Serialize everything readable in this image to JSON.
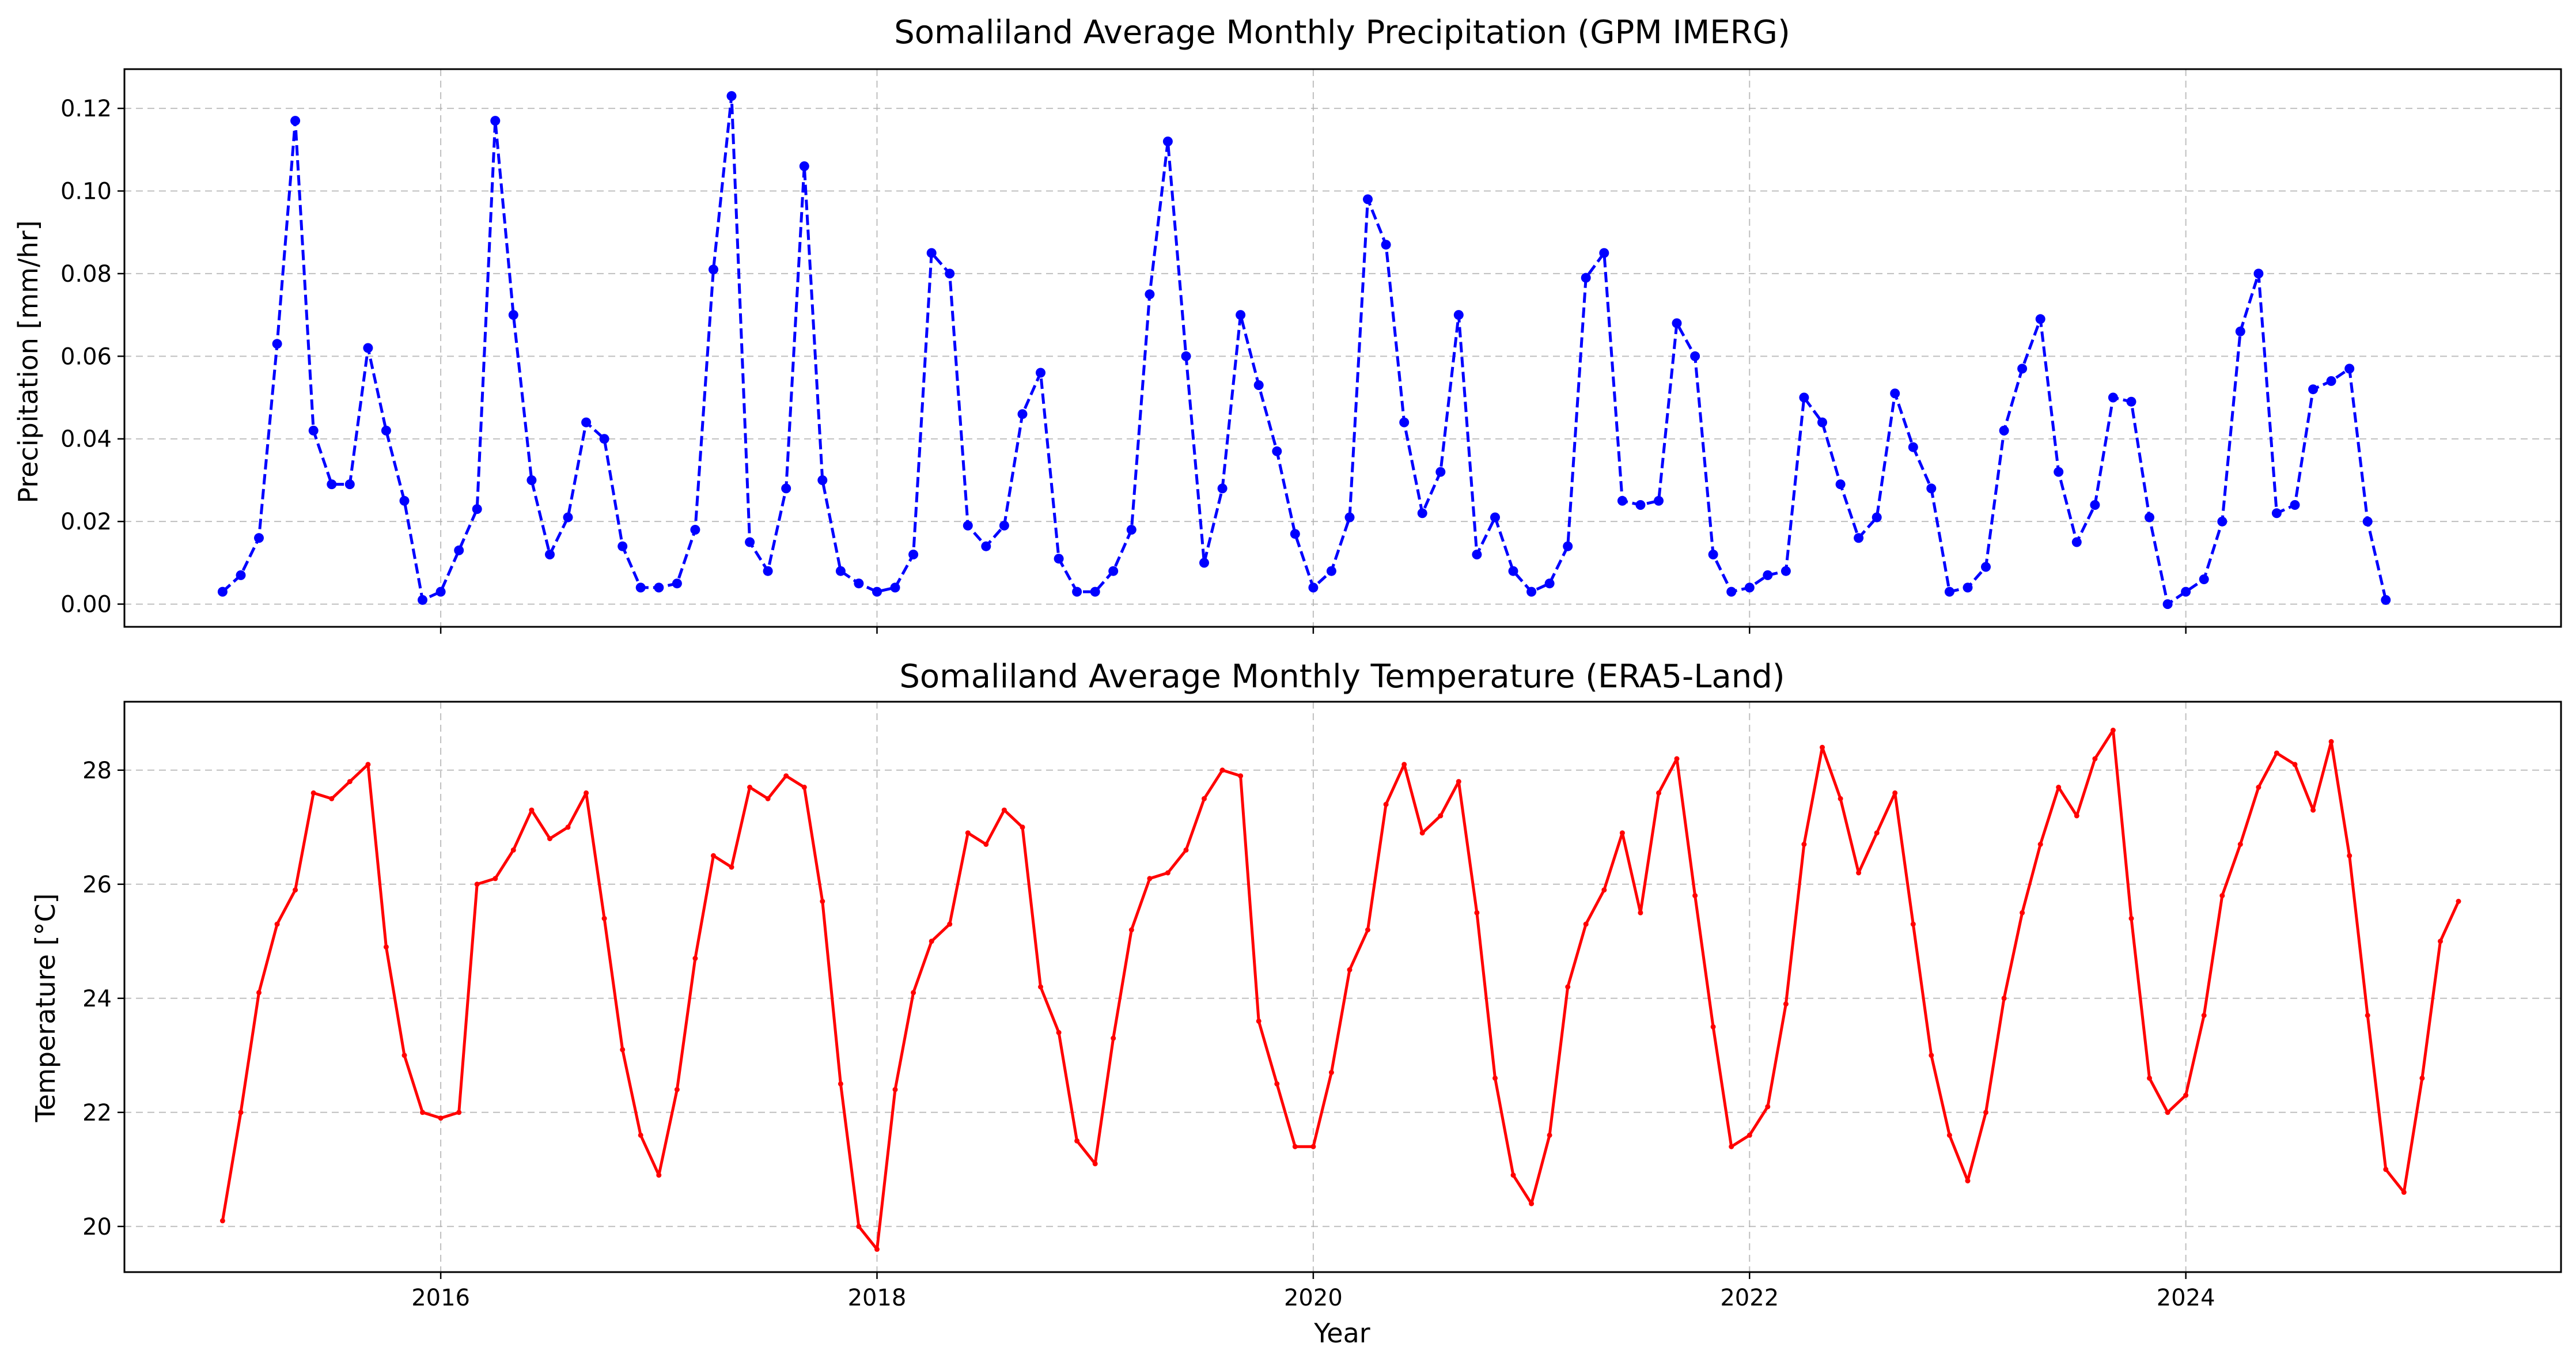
{
  "chart_data": [
    {
      "type": "line",
      "title": "Somaliland Average Monthly Precipitation (GPM IMERG)",
      "xlabel": "",
      "ylabel": "Precipitation [mm/hr]",
      "xlim": [
        2014.55,
        2025.72
      ],
      "ylim": [
        -0.0055,
        0.1295
      ],
      "grid": true,
      "x_start": "2015-01",
      "x_ticks": [
        2016,
        2018,
        2020,
        2022,
        2024
      ],
      "y_ticks": [
        0.0,
        0.02,
        0.04,
        0.06,
        0.08,
        0.1,
        0.12
      ],
      "y_tick_labels": [
        "0.00",
        "0.02",
        "0.04",
        "0.06",
        "0.08",
        "0.10",
        "0.12"
      ],
      "series": [
        {
          "color": "#0000ff",
          "line_style": "dashed",
          "marker": "circle",
          "values": [
            0.003,
            0.007,
            0.016,
            0.063,
            0.117,
            0.042,
            0.029,
            0.029,
            0.062,
            0.042,
            0.025,
            0.001,
            0.003,
            0.013,
            0.023,
            0.117,
            0.07,
            0.03,
            0.012,
            0.021,
            0.044,
            0.04,
            0.014,
            0.004,
            0.004,
            0.005,
            0.018,
            0.081,
            0.123,
            0.015,
            0.008,
            0.028,
            0.106,
            0.03,
            0.008,
            0.005,
            0.003,
            0.004,
            0.012,
            0.085,
            0.08,
            0.019,
            0.014,
            0.019,
            0.046,
            0.056,
            0.011,
            0.003,
            0.003,
            0.008,
            0.018,
            0.075,
            0.112,
            0.06,
            0.01,
            0.028,
            0.07,
            0.053,
            0.037,
            0.017,
            0.004,
            0.008,
            0.021,
            0.098,
            0.087,
            0.044,
            0.022,
            0.032,
            0.07,
            0.012,
            0.021,
            0.008,
            0.003,
            0.005,
            0.014,
            0.079,
            0.085,
            0.025,
            0.024,
            0.025,
            0.068,
            0.06,
            0.012,
            0.003,
            0.004,
            0.007,
            0.008,
            0.05,
            0.044,
            0.029,
            0.016,
            0.021,
            0.051,
            0.038,
            0.028,
            0.003,
            0.004,
            0.009,
            0.042,
            0.057,
            0.069,
            0.032,
            0.015,
            0.024,
            0.05,
            0.049,
            0.021,
            0.0,
            0.003,
            0.006,
            0.02,
            0.066,
            0.08,
            0.022,
            0.024,
            0.052,
            0.054,
            0.057,
            0.02,
            0.001
          ]
        }
      ]
    },
    {
      "type": "line",
      "title": "Somaliland Average Monthly Temperature (ERA5-Land)",
      "xlabel": "Year",
      "ylabel": "Temperature [°C]",
      "xlim": [
        2014.55,
        2025.72
      ],
      "ylim": [
        19.2,
        29.2
      ],
      "grid": true,
      "x_start": "2015-01",
      "x_ticks": [
        2016,
        2018,
        2020,
        2022,
        2024
      ],
      "y_ticks": [
        20,
        22,
        24,
        26,
        28
      ],
      "y_tick_labels": [
        "20",
        "22",
        "24",
        "26",
        "28"
      ],
      "series": [
        {
          "color": "#ff0000",
          "line_style": "solid",
          "marker": "dot",
          "values": [
            20.1,
            22.0,
            24.1,
            25.3,
            25.9,
            27.6,
            27.5,
            27.8,
            28.1,
            24.9,
            23.0,
            22.0,
            21.9,
            22.0,
            26.0,
            26.1,
            26.6,
            27.3,
            26.8,
            27.0,
            27.6,
            25.4,
            23.1,
            21.6,
            20.9,
            22.4,
            24.7,
            26.5,
            26.3,
            27.7,
            27.5,
            27.9,
            27.7,
            25.7,
            22.5,
            20.0,
            19.6,
            22.4,
            24.1,
            25.0,
            25.3,
            26.9,
            26.7,
            27.3,
            27.0,
            24.2,
            23.4,
            21.5,
            21.1,
            23.3,
            25.2,
            26.1,
            26.2,
            26.6,
            27.5,
            28.0,
            27.9,
            23.6,
            22.5,
            21.4,
            21.4,
            22.7,
            24.5,
            25.2,
            27.4,
            28.1,
            26.9,
            27.2,
            27.8,
            25.5,
            22.6,
            20.9,
            20.4,
            21.6,
            24.2,
            25.3,
            25.9,
            26.9,
            25.5,
            27.6,
            28.2,
            25.8,
            23.5,
            21.4,
            21.6,
            22.1,
            23.9,
            26.7,
            28.4,
            27.5,
            26.2,
            26.9,
            27.6,
            25.3,
            23.0,
            21.6,
            20.8,
            22.0,
            24.0,
            25.5,
            26.7,
            27.7,
            27.2,
            28.2,
            28.7,
            25.4,
            22.6,
            22.0,
            22.3,
            23.7,
            25.8,
            26.7,
            27.7,
            28.3,
            28.1,
            27.3,
            28.5,
            26.5,
            23.7,
            21.0,
            20.6,
            22.6,
            25.0,
            25.7
          ]
        }
      ]
    }
  ]
}
